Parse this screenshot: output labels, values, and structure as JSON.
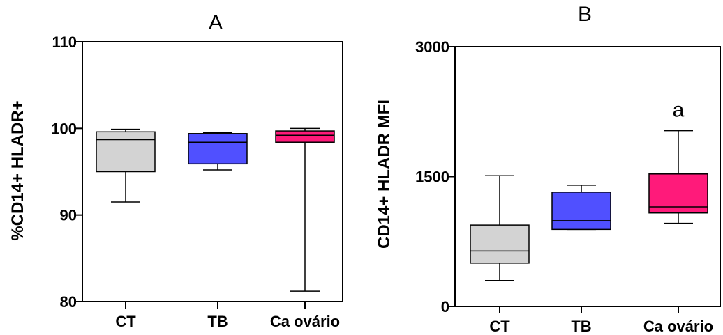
{
  "chart_data": [
    {
      "type": "box",
      "title": "A",
      "ylabel": "%CD14+ HLADR+",
      "ylim": [
        80,
        110
      ],
      "yticks": [
        "80",
        "90",
        "100",
        "110"
      ],
      "categories": [
        "CT",
        "TB",
        "Ca ovário"
      ],
      "boxes": [
        {
          "name": "CT",
          "whisker_low": 91.5,
          "q1": 95.0,
          "median": 98.7,
          "q3": 99.6,
          "whisker_high": 99.9,
          "color": "#d3d3d3"
        },
        {
          "name": "TB",
          "whisker_low": 95.2,
          "q1": 95.9,
          "median": 98.4,
          "q3": 99.4,
          "whisker_high": 99.5,
          "color": "#5050ff"
        },
        {
          "name": "Ca ovário",
          "whisker_low": 81.2,
          "q1": 98.4,
          "median": 99.2,
          "q3": 99.7,
          "whisker_high": 100.0,
          "color": "#ff1a7a"
        }
      ],
      "annotations": []
    },
    {
      "type": "box",
      "title": "B",
      "ylabel": "CD14+ HLADR MFI",
      "ylim": [
        0,
        3000
      ],
      "yticks": [
        "0",
        "1500",
        "3000"
      ],
      "categories": [
        "CT",
        "TB",
        "Ca ovário"
      ],
      "boxes": [
        {
          "name": "CT",
          "whisker_low": 300,
          "q1": 500,
          "median": 640,
          "q3": 940,
          "whisker_high": 1510,
          "color": "#d3d3d3"
        },
        {
          "name": "TB",
          "whisker_low": 890,
          "q1": 890,
          "median": 990,
          "q3": 1320,
          "whisker_high": 1400,
          "color": "#5050ff"
        },
        {
          "name": "Ca ovário",
          "whisker_low": 960,
          "q1": 1080,
          "median": 1150,
          "q3": 1530,
          "whisker_high": 2030,
          "color": "#ff1a7a"
        }
      ],
      "annotations": [
        {
          "text": "a",
          "category": "Ca ovário"
        }
      ]
    }
  ]
}
